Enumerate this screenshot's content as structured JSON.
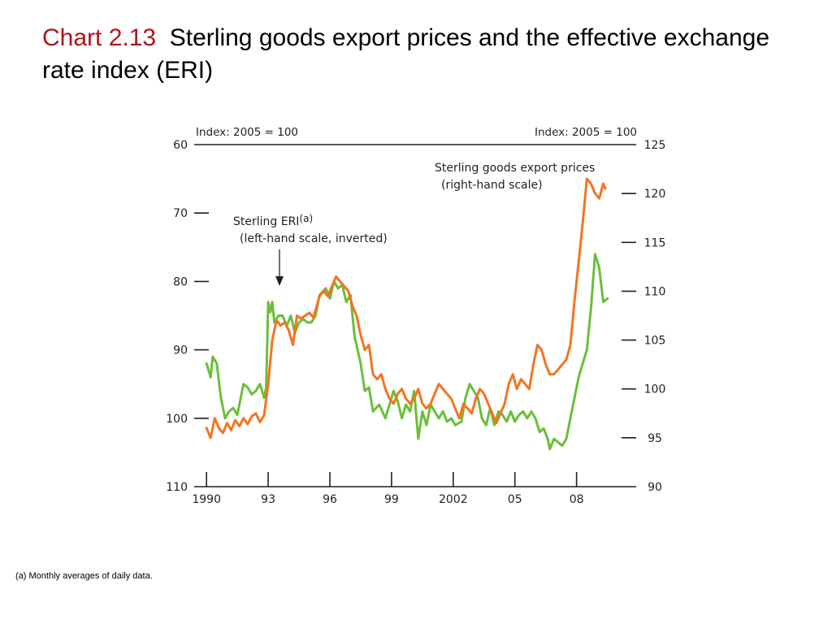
{
  "slide": {
    "chart_label": "Chart 2.13",
    "title": "Sterling goods export prices and the effective exchange rate index (ERI)",
    "footnote": "(a) Monthly averages of daily data."
  },
  "colors": {
    "eri": "#6abf3a",
    "export_prices": "#f37421",
    "axis": "#231f20",
    "title_label": "#b0141a"
  },
  "chart_data": {
    "type": "line",
    "left_axis": {
      "unit_label": "Index:  2005 = 100",
      "ticks": [
        "60",
        "70",
        "80",
        "90",
        "100",
        "110"
      ],
      "range": [
        60,
        110
      ],
      "inverted": true
    },
    "right_axis": {
      "unit_label": "Index:  2005 = 100",
      "ticks": [
        "125",
        "120",
        "115",
        "110",
        "105",
        "100",
        "95",
        "90"
      ],
      "range": [
        90,
        125
      ],
      "inverted": false
    },
    "x_axis": {
      "tick_labels": [
        "1990",
        "93",
        "96",
        "99",
        "2002",
        "05",
        "08"
      ],
      "tick_years": [
        1990,
        1993,
        1996,
        1999,
        2002,
        2005,
        2008
      ],
      "range": [
        1989.4,
        2010.9
      ]
    },
    "annotations": {
      "eri_label": "Sterling ERI",
      "eri_superscript": "(a)",
      "eri_sublabel": "(left-hand scale, inverted)",
      "exports_label": "Sterling goods export prices",
      "exports_sublabel": "(right-hand scale)"
    },
    "series": [
      {
        "name": "Sterling ERI",
        "axis": "left",
        "color": "#6abf3a",
        "points": [
          [
            1990.0,
            92.0
          ],
          [
            1990.2,
            94.0
          ],
          [
            1990.3,
            91.0
          ],
          [
            1990.5,
            92.0
          ],
          [
            1990.7,
            97.0
          ],
          [
            1990.9,
            100.0
          ],
          [
            1991.1,
            99.0
          ],
          [
            1991.3,
            98.5
          ],
          [
            1991.5,
            99.5
          ],
          [
            1991.8,
            95.0
          ],
          [
            1992.0,
            95.5
          ],
          [
            1992.2,
            96.5
          ],
          [
            1992.4,
            96.0
          ],
          [
            1992.6,
            95.0
          ],
          [
            1992.8,
            97.0
          ],
          [
            1992.9,
            95.5
          ],
          [
            1993.0,
            83.0
          ],
          [
            1993.1,
            84.5
          ],
          [
            1993.2,
            83.0
          ],
          [
            1993.3,
            86.0
          ],
          [
            1993.5,
            85.0
          ],
          [
            1993.7,
            85.0
          ],
          [
            1993.9,
            86.5
          ],
          [
            1994.1,
            85.0
          ],
          [
            1994.3,
            87.5
          ],
          [
            1994.5,
            86.0
          ],
          [
            1994.7,
            85.5
          ],
          [
            1994.9,
            86.0
          ],
          [
            1995.1,
            86.0
          ],
          [
            1995.3,
            85.0
          ],
          [
            1995.5,
            82.0
          ],
          [
            1995.8,
            81.0
          ],
          [
            1996.0,
            82.5
          ],
          [
            1996.2,
            80.0
          ],
          [
            1996.4,
            81.0
          ],
          [
            1996.6,
            80.5
          ],
          [
            1996.8,
            83.0
          ],
          [
            1997.0,
            82.0
          ],
          [
            1997.2,
            88.0
          ],
          [
            1997.5,
            92.0
          ],
          [
            1997.7,
            96.0
          ],
          [
            1997.9,
            95.5
          ],
          [
            1998.1,
            99.0
          ],
          [
            1998.4,
            98.0
          ],
          [
            1998.7,
            100.0
          ],
          [
            1998.9,
            98.0
          ],
          [
            1999.1,
            96.0
          ],
          [
            1999.3,
            97.5
          ],
          [
            1999.5,
            100.0
          ],
          [
            1999.7,
            98.0
          ],
          [
            1999.9,
            99.0
          ],
          [
            2000.1,
            96.0
          ],
          [
            2000.3,
            103.0
          ],
          [
            2000.5,
            99.0
          ],
          [
            2000.7,
            101.0
          ],
          [
            2000.9,
            98.0
          ],
          [
            2001.1,
            99.0
          ],
          [
            2001.3,
            100.0
          ],
          [
            2001.5,
            99.0
          ],
          [
            2001.7,
            100.5
          ],
          [
            2001.9,
            100.0
          ],
          [
            2002.1,
            101.0
          ],
          [
            2002.4,
            100.5
          ],
          [
            2002.6,
            97.0
          ],
          [
            2002.8,
            95.0
          ],
          [
            2003.0,
            96.0
          ],
          [
            2003.2,
            97.0
          ],
          [
            2003.4,
            100.0
          ],
          [
            2003.6,
            101.0
          ],
          [
            2003.8,
            98.5
          ],
          [
            2004.0,
            101.0
          ],
          [
            2004.2,
            99.0
          ],
          [
            2004.4,
            99.5
          ],
          [
            2004.6,
            100.5
          ],
          [
            2004.8,
            99.0
          ],
          [
            2005.0,
            100.5
          ],
          [
            2005.2,
            99.5
          ],
          [
            2005.4,
            99.0
          ],
          [
            2005.6,
            100.0
          ],
          [
            2005.8,
            99.0
          ],
          [
            2006.0,
            100.0
          ],
          [
            2006.2,
            102.0
          ],
          [
            2006.4,
            101.5
          ],
          [
            2006.6,
            103.0
          ],
          [
            2006.7,
            104.5
          ],
          [
            2006.9,
            103.0
          ],
          [
            2007.1,
            103.5
          ],
          [
            2007.3,
            104.0
          ],
          [
            2007.5,
            103.0
          ],
          [
            2007.7,
            100.0
          ],
          [
            2007.9,
            97.0
          ],
          [
            2008.1,
            94.0
          ],
          [
            2008.3,
            92.0
          ],
          [
            2008.5,
            90.0
          ],
          [
            2008.7,
            84.0
          ],
          [
            2008.9,
            76.0
          ],
          [
            2009.1,
            78.0
          ],
          [
            2009.3,
            83.0
          ],
          [
            2009.5,
            82.5
          ]
        ]
      },
      {
        "name": "Sterling goods export prices",
        "axis": "right",
        "color": "#f37421",
        "points": [
          [
            1990.0,
            96.0
          ],
          [
            1990.2,
            95.0
          ],
          [
            1990.4,
            97.0
          ],
          [
            1990.6,
            96.0
          ],
          [
            1990.8,
            95.5
          ],
          [
            1991.0,
            96.5
          ],
          [
            1991.2,
            95.8
          ],
          [
            1991.4,
            96.8
          ],
          [
            1991.6,
            96.2
          ],
          [
            1991.8,
            97.0
          ],
          [
            1992.0,
            96.4
          ],
          [
            1992.2,
            97.2
          ],
          [
            1992.4,
            97.5
          ],
          [
            1992.6,
            96.6
          ],
          [
            1992.8,
            97.3
          ],
          [
            1993.0,
            100.5
          ],
          [
            1993.2,
            105.0
          ],
          [
            1993.4,
            107.0
          ],
          [
            1993.6,
            106.5
          ],
          [
            1993.8,
            106.8
          ],
          [
            1994.0,
            106.0
          ],
          [
            1994.2,
            104.5
          ],
          [
            1994.4,
            107.5
          ],
          [
            1994.6,
            107.2
          ],
          [
            1994.8,
            107.5
          ],
          [
            1995.0,
            107.8
          ],
          [
            1995.2,
            107.3
          ],
          [
            1995.5,
            109.5
          ],
          [
            1995.7,
            110.0
          ],
          [
            1995.9,
            109.5
          ],
          [
            1996.1,
            110.5
          ],
          [
            1996.3,
            111.5
          ],
          [
            1996.5,
            111.0
          ],
          [
            1996.7,
            110.5
          ],
          [
            1996.9,
            110.0
          ],
          [
            1997.1,
            108.5
          ],
          [
            1997.3,
            107.5
          ],
          [
            1997.5,
            105.5
          ],
          [
            1997.7,
            104.0
          ],
          [
            1997.9,
            104.5
          ],
          [
            1998.1,
            101.5
          ],
          [
            1998.3,
            101.0
          ],
          [
            1998.5,
            101.5
          ],
          [
            1998.7,
            100.0
          ],
          [
            1998.9,
            99.0
          ],
          [
            1999.1,
            98.5
          ],
          [
            1999.3,
            99.5
          ],
          [
            1999.5,
            100.0
          ],
          [
            1999.7,
            99.0
          ],
          [
            1999.9,
            98.5
          ],
          [
            2000.1,
            99.0
          ],
          [
            2000.3,
            100.0
          ],
          [
            2000.5,
            98.5
          ],
          [
            2000.7,
            98.0
          ],
          [
            2000.9,
            98.5
          ],
          [
            2001.1,
            99.5
          ],
          [
            2001.3,
            100.5
          ],
          [
            2001.5,
            100.0
          ],
          [
            2001.7,
            99.5
          ],
          [
            2001.9,
            99.0
          ],
          [
            2002.1,
            98.0
          ],
          [
            2002.3,
            97.0
          ],
          [
            2002.5,
            98.5
          ],
          [
            2002.7,
            98.0
          ],
          [
            2002.9,
            97.5
          ],
          [
            2003.1,
            99.0
          ],
          [
            2003.3,
            100.0
          ],
          [
            2003.5,
            99.5
          ],
          [
            2003.7,
            98.5
          ],
          [
            2003.9,
            97.5
          ],
          [
            2004.1,
            96.5
          ],
          [
            2004.3,
            97.5
          ],
          [
            2004.5,
            98.5
          ],
          [
            2004.7,
            100.5
          ],
          [
            2004.9,
            101.5
          ],
          [
            2005.1,
            100.0
          ],
          [
            2005.3,
            101.0
          ],
          [
            2005.5,
            100.5
          ],
          [
            2005.7,
            100.0
          ],
          [
            2005.9,
            102.5
          ],
          [
            2006.1,
            104.5
          ],
          [
            2006.3,
            104.0
          ],
          [
            2006.5,
            102.5
          ],
          [
            2006.7,
            101.5
          ],
          [
            2006.9,
            101.5
          ],
          [
            2007.1,
            102.0
          ],
          [
            2007.3,
            102.5
          ],
          [
            2007.5,
            103.0
          ],
          [
            2007.7,
            104.5
          ],
          [
            2007.9,
            109.0
          ],
          [
            2008.1,
            113.0
          ],
          [
            2008.3,
            117.0
          ],
          [
            2008.5,
            121.5
          ],
          [
            2008.7,
            121.0
          ],
          [
            2008.9,
            120.0
          ],
          [
            2009.1,
            119.5
          ],
          [
            2009.3,
            121.0
          ],
          [
            2009.4,
            120.5
          ]
        ]
      }
    ]
  }
}
